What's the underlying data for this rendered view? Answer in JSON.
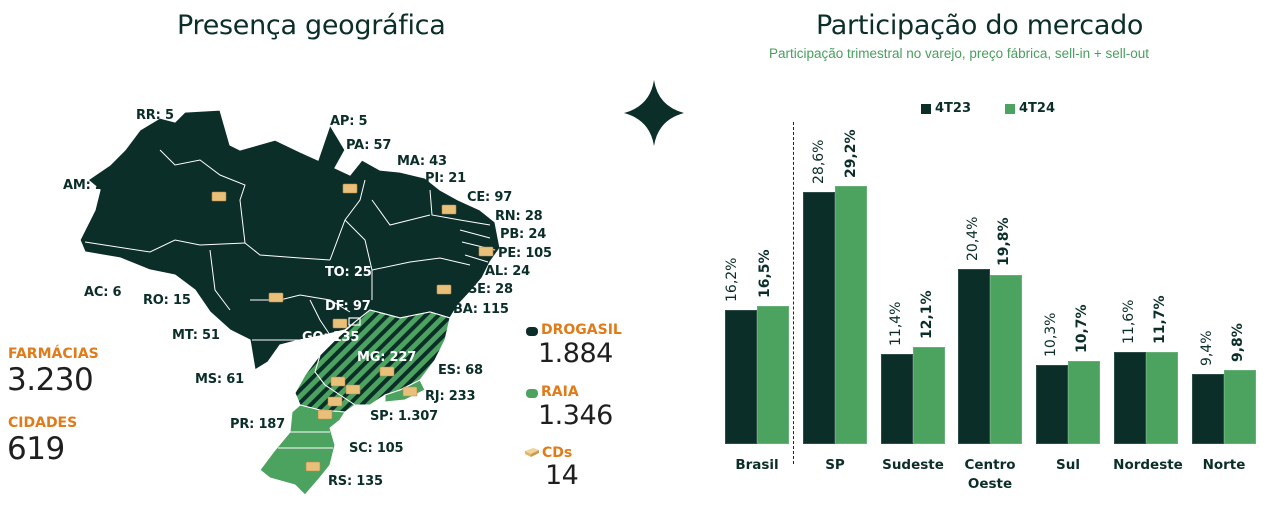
{
  "left_panel": {
    "title": "Presença geográfica",
    "states": [
      {
        "label": "RR: 5"
      },
      {
        "label": "AP: 5"
      },
      {
        "label": "PA: 57"
      },
      {
        "label": "MA: 43"
      },
      {
        "label": "PI: 21"
      },
      {
        "label": "AM: 25"
      },
      {
        "label": "CE: 97"
      },
      {
        "label": "RN: 28"
      },
      {
        "label": "PB: 24"
      },
      {
        "label": "PE: 105"
      },
      {
        "label": "TO: 25"
      },
      {
        "label": "AL: 24"
      },
      {
        "label": "AC: 6"
      },
      {
        "label": "SE: 28"
      },
      {
        "label": "RO: 15"
      },
      {
        "label": "DF: 97"
      },
      {
        "label": "BA: 115"
      },
      {
        "label": "GO: 135"
      },
      {
        "label": "MT: 51"
      },
      {
        "label": "MG: 227"
      },
      {
        "label": "ES: 68"
      },
      {
        "label": "MS: 61"
      },
      {
        "label": "RJ: 233"
      },
      {
        "label": "SP: 1.307"
      },
      {
        "label": "PR: 187"
      },
      {
        "label": "SC: 105"
      },
      {
        "label": "RS: 135"
      }
    ],
    "stats": {
      "farmacias_label": "FARMÁCIAS",
      "farmacias_value": "3.230",
      "cidades_label": "CIDADES",
      "cidades_value": "619"
    },
    "legend": {
      "drogasil_label": "DROGASIL",
      "drogasil_value": "1.884",
      "drogasil_color": "#0b2e29",
      "raia_label": "RAIA",
      "raia_value": "1.346",
      "raia_color": "#4ca25f",
      "cds_label": "CDs",
      "cds_value": "14",
      "cds_icon": "warehouse-box-icon"
    }
  },
  "decoration": {
    "icon": "four-point-star-icon"
  },
  "right_panel": {
    "title": "Participação do mercado",
    "subtitle": "Participação trimestral no varejo, preço fábrica, sell-in + sell-out",
    "legend": [
      {
        "label": "4T23",
        "color": "#0b2e29"
      },
      {
        "label": "4T24",
        "color": "#4ca25f"
      }
    ],
    "labels": {
      "brasil": {
        "a": "16,2%",
        "b": "16,5%"
      },
      "sp": {
        "a": "28,6%",
        "b": "29,2%"
      },
      "sudeste": {
        "a": "11,4%",
        "b": "12,1%"
      },
      "centro": {
        "a": "20,4%",
        "b": "19,8%"
      },
      "sul": {
        "a": "10,3%",
        "b": "10,7%"
      },
      "nordeste": {
        "a": "11,6%",
        "b": "11,7%"
      },
      "norte": {
        "a": "9,4%",
        "b": "9,8%"
      }
    },
    "categories": [
      "Brasil",
      "SP",
      "Sudeste",
      "Centro Oeste",
      "Sul",
      "Nordeste",
      "Norte"
    ]
  },
  "chart_data": {
    "type": "bar",
    "title": "Participação do mercado",
    "subtitle": "Participação trimestral no varejo, preço fábrica, sell-in + sell-out",
    "categories": [
      "Brasil",
      "SP",
      "Sudeste",
      "Centro Oeste",
      "Sul",
      "Nordeste",
      "Norte"
    ],
    "series": [
      {
        "name": "4T23",
        "values": [
          16.2,
          28.6,
          11.4,
          20.4,
          10.3,
          11.6,
          9.4
        ],
        "color": "#0b2e29"
      },
      {
        "name": "4T24",
        "values": [
          16.5,
          29.2,
          12.1,
          19.8,
          10.7,
          11.7,
          9.8
        ],
        "color": "#4ca25f"
      }
    ],
    "xlabel": "",
    "ylabel": "",
    "unit": "%",
    "grid": false,
    "legend_position": "top",
    "annotations": [
      "dashed separator between Brasil and SP"
    ]
  }
}
